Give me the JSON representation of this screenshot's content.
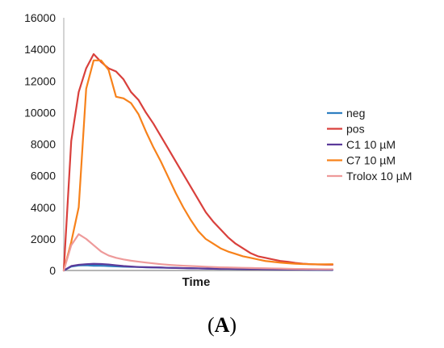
{
  "chart_data": {
    "type": "line",
    "xlabel": "Time",
    "ylabel": "",
    "ylim": [
      0,
      16000
    ],
    "yticks": [
      "0",
      "2000",
      "4000",
      "6000",
      "8000",
      "10000",
      "12000",
      "14000",
      "16000"
    ],
    "grid": false,
    "legend_position": "right",
    "panel": {
      "open": "(",
      "letter": "A",
      "close": ")"
    },
    "series": [
      {
        "name": "neg",
        "color": "#2f7fc1",
        "values": [
          0,
          250,
          320,
          330,
          300,
          300,
          280,
          260,
          240,
          230,
          220,
          200,
          190,
          180,
          170,
          160,
          150,
          140,
          130,
          120,
          110,
          100,
          100,
          95,
          90,
          85,
          80,
          75,
          70,
          65,
          60,
          55,
          50,
          45,
          40,
          40,
          35
        ]
      },
      {
        "name": "pos",
        "color": "#d9403c",
        "values": [
          0,
          8200,
          11300,
          12800,
          13700,
          13200,
          12800,
          12600,
          12100,
          11300,
          10800,
          10000,
          9300,
          8500,
          7700,
          6900,
          6100,
          5300,
          4500,
          3700,
          3100,
          2600,
          2100,
          1700,
          1400,
          1100,
          900,
          800,
          700,
          600,
          550,
          480,
          430,
          400,
          380,
          370,
          370
        ]
      },
      {
        "name": "C1 10 µM",
        "color": "#5b3a9a",
        "values": [
          0,
          280,
          360,
          400,
          420,
          410,
          380,
          330,
          280,
          250,
          220,
          210,
          200,
          190,
          170,
          160,
          150,
          140,
          130,
          120,
          110,
          100,
          100,
          95,
          90,
          85,
          80,
          75,
          70,
          65,
          60,
          55,
          55,
          50,
          50,
          45,
          45
        ]
      },
      {
        "name": "C7 10 µM",
        "color": "#f7821b",
        "values": [
          0,
          1800,
          4000,
          11500,
          13300,
          13300,
          12700,
          11000,
          10900,
          10600,
          9900,
          8800,
          7800,
          6900,
          5900,
          4900,
          4000,
          3200,
          2500,
          2000,
          1700,
          1400,
          1200,
          1050,
          900,
          800,
          700,
          600,
          550,
          500,
          460,
          430,
          410,
          400,
          390,
          390,
          400
        ]
      },
      {
        "name": "Trolox 10 µM",
        "color": "#ee9a9a",
        "values": [
          0,
          1600,
          2300,
          2000,
          1600,
          1200,
          950,
          800,
          700,
          620,
          560,
          500,
          450,
          400,
          360,
          330,
          300,
          280,
          260,
          240,
          220,
          200,
          190,
          180,
          170,
          160,
          150,
          140,
          130,
          120,
          110,
          100,
          95,
          90,
          85,
          80,
          80
        ]
      }
    ]
  }
}
